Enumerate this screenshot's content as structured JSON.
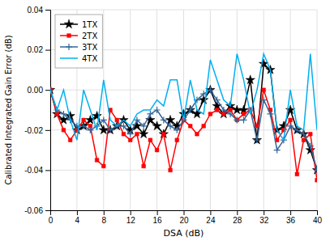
{
  "chart_data": {
    "type": "line",
    "x": [
      0,
      1,
      2,
      3,
      4,
      5,
      6,
      7,
      8,
      9,
      10,
      11,
      12,
      13,
      14,
      15,
      16,
      17,
      18,
      19,
      20,
      21,
      22,
      23,
      24,
      25,
      26,
      27,
      28,
      29,
      30,
      31,
      32,
      33,
      34,
      35,
      36,
      37,
      38,
      39,
      40
    ],
    "xlabel": "DSA (dB)",
    "ylabel": "Calibrated Integrated Gain Error (dB)",
    "xlim": [
      0,
      40
    ],
    "ylim": [
      -0.06,
      0.04
    ],
    "xticks": [
      0,
      4,
      8,
      12,
      16,
      20,
      24,
      28,
      32,
      36,
      40
    ],
    "yticks": [
      -0.06,
      -0.04,
      -0.02,
      {
        "value": 0,
        "label": "0.00"
      },
      0.02,
      0.04
    ],
    "grid": true,
    "legend": "upper left",
    "series": [
      {
        "name": "1TX",
        "color": "#000000",
        "marker": "star",
        "values": [
          0.0,
          -0.012,
          -0.015,
          -0.013,
          -0.02,
          -0.018,
          -0.015,
          -0.013,
          -0.02,
          -0.02,
          -0.018,
          -0.015,
          -0.02,
          -0.018,
          -0.022,
          -0.015,
          -0.018,
          -0.022,
          -0.015,
          -0.018,
          -0.012,
          -0.01,
          -0.012,
          -0.005,
          0.0,
          -0.008,
          -0.012,
          -0.008,
          -0.01,
          -0.01,
          0.005,
          -0.025,
          0.013,
          0.01,
          -0.02,
          -0.018,
          -0.01,
          -0.02,
          -0.022,
          -0.03,
          -0.04
        ]
      },
      {
        "name": "2TX",
        "color": "#ff0000",
        "marker": "square",
        "values": [
          0.0,
          -0.012,
          -0.02,
          -0.025,
          -0.02,
          -0.015,
          -0.018,
          -0.035,
          -0.038,
          -0.01,
          -0.015,
          -0.022,
          -0.025,
          -0.022,
          -0.038,
          -0.025,
          -0.03,
          -0.022,
          -0.04,
          -0.025,
          -0.015,
          -0.018,
          -0.022,
          -0.018,
          -0.012,
          -0.01,
          -0.012,
          -0.01,
          -0.015,
          -0.012,
          -0.01,
          -0.018,
          0.0,
          -0.01,
          -0.025,
          -0.02,
          -0.015,
          -0.042,
          -0.025,
          -0.022,
          -0.045
        ]
      },
      {
        "name": "3TX",
        "color": "#336699",
        "marker": "plus",
        "values": [
          0.0,
          -0.01,
          -0.012,
          -0.015,
          -0.018,
          -0.018,
          -0.02,
          -0.018,
          -0.015,
          -0.02,
          -0.018,
          -0.018,
          -0.022,
          -0.015,
          -0.018,
          -0.012,
          -0.01,
          -0.015,
          -0.018,
          -0.02,
          -0.015,
          -0.01,
          -0.005,
          -0.002,
          0.0,
          -0.005,
          -0.01,
          -0.012,
          -0.015,
          -0.015,
          -0.01,
          -0.025,
          -0.005,
          -0.012,
          -0.03,
          -0.025,
          -0.018,
          -0.02,
          -0.022,
          -0.028,
          -0.04
        ]
      },
      {
        "name": "4TX",
        "color": "#00b0f0",
        "values": [
          0.0,
          -0.01,
          0.0,
          -0.015,
          -0.025,
          0.0,
          -0.01,
          -0.02,
          0.005,
          -0.015,
          -0.018,
          -0.015,
          -0.018,
          -0.012,
          -0.01,
          -0.01,
          -0.005,
          -0.008,
          0.005,
          0.005,
          -0.015,
          0.005,
          -0.01,
          -0.012,
          0.015,
          0.005,
          -0.005,
          -0.008,
          0.018,
          0.005,
          -0.012,
          0.0,
          0.018,
          0.01,
          -0.02,
          -0.025,
          0.0,
          -0.018,
          -0.02,
          0.018,
          -0.02
        ]
      }
    ]
  }
}
